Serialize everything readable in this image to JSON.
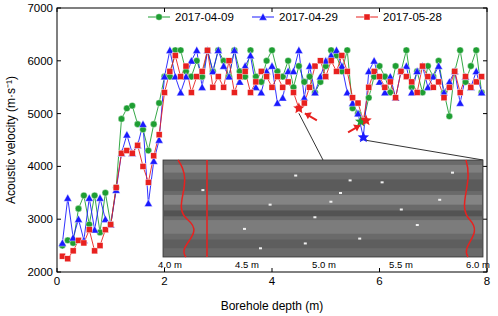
{
  "chart_data": {
    "type": "line",
    "xlabel": "Borehole depth (m)",
    "ylabel": "Acoustic velocity (m·s⁻¹)",
    "xlim": [
      0,
      8
    ],
    "xticks": [
      0,
      2,
      4,
      6,
      8
    ],
    "ylim": [
      2000,
      7000
    ],
    "yticks": [
      2000,
      3000,
      4000,
      5000,
      6000,
      7000
    ],
    "legend": "top",
    "x": [
      0.1,
      0.2,
      0.3,
      0.4,
      0.5,
      0.6,
      0.7,
      0.8,
      0.9,
      1.0,
      1.1,
      1.2,
      1.3,
      1.4,
      1.5,
      1.6,
      1.7,
      1.8,
      1.9,
      2.0,
      2.1,
      2.2,
      2.3,
      2.4,
      2.5,
      2.6,
      2.7,
      2.8,
      2.9,
      3.0,
      3.1,
      3.2,
      3.3,
      3.4,
      3.5,
      3.6,
      3.7,
      3.8,
      3.9,
      4.0,
      4.1,
      4.2,
      4.3,
      4.4,
      4.5,
      4.6,
      4.7,
      4.8,
      4.9,
      5.0,
      5.1,
      5.2,
      5.3,
      5.4,
      5.5,
      5.6,
      5.7,
      5.8,
      5.9,
      6.0,
      6.1,
      6.2,
      6.3,
      6.4,
      6.5,
      6.6,
      6.7,
      6.8,
      6.9,
      7.0,
      7.1,
      7.2,
      7.3,
      7.4,
      7.5,
      7.6,
      7.7,
      7.8,
      7.9
    ],
    "series": [
      {
        "name": "2017-04-09",
        "color": "#1e9e32",
        "marker": "circle",
        "values": [
          2500,
          2600,
          2550,
          3200,
          3450,
          2900,
          3450,
          2750,
          3500,
          2900,
          3600,
          4900,
          5100,
          5150,
          4800,
          4700,
          4300,
          4800,
          5200,
          5700,
          5700,
          6200,
          6200,
          5800,
          5700,
          6000,
          5700,
          6200,
          5800,
          6200,
          6000,
          5700,
          6200,
          5800,
          5700,
          6200,
          5700,
          5600,
          6000,
          6200,
          5800,
          5700,
          6000,
          5500,
          5900,
          5600,
          5700,
          5400,
          5600,
          5900,
          6200,
          6100,
          5800,
          6200,
          5100,
          5000,
          4850,
          5300,
          5700,
          5900,
          5700,
          5400,
          5900,
          5800,
          6200,
          5500,
          5800,
          5400,
          5900,
          5700,
          6000,
          5400,
          4950,
          5800,
          6200,
          5600,
          5900,
          6200,
          5400
        ]
      },
      {
        "name": "2017-04-29",
        "color": "#1a1aff",
        "marker": "triangle",
        "values": [
          2550,
          3400,
          2650,
          3000,
          2600,
          3400,
          2800,
          3400,
          3000,
          2900,
          3550,
          4250,
          4600,
          4250,
          4400,
          4800,
          3300,
          4100,
          4500,
          5700,
          6200,
          5700,
          5400,
          5700,
          6000,
          6200,
          5500,
          6200,
          5800,
          6200,
          5900,
          5700,
          6200,
          5600,
          5900,
          6100,
          5500,
          5400,
          5800,
          5900,
          5200,
          5300,
          5800,
          5800,
          6200,
          5300,
          5900,
          5400,
          5700,
          6000,
          6100,
          6200,
          5900,
          5400,
          5200,
          5000,
          4550,
          5800,
          6000,
          5600,
          5400,
          5700,
          5300,
          5800,
          5900,
          5400,
          5800,
          5900,
          5500,
          5700,
          5900,
          5400,
          5600,
          5800,
          5200,
          5700,
          5500,
          5800,
          5400
        ]
      },
      {
        "name": "2017-05-28",
        "color": "#e8211f",
        "marker": "square",
        "values": [
          2300,
          2250,
          2400,
          2600,
          2550,
          2800,
          2400,
          2500,
          2800,
          2900,
          3600,
          4250,
          4300,
          4250,
          4400,
          4000,
          3700,
          4200,
          4600,
          5400,
          5800,
          6100,
          5700,
          5900,
          5400,
          5700,
          5800,
          6200,
          5500,
          5700,
          5500,
          6000,
          5400,
          5700,
          5800,
          5400,
          5600,
          5800,
          5700,
          5500,
          5700,
          5500,
          5600,
          5400,
          5100,
          5200,
          5500,
          5900,
          6000,
          5700,
          6000,
          5800,
          6100,
          5800,
          5300,
          5200,
          4870,
          5500,
          5800,
          5700,
          5500,
          5600,
          5300,
          5800,
          5700,
          5600,
          5400,
          5900,
          5700,
          5500,
          5600,
          5300,
          5500,
          5800,
          5400,
          5700,
          5500,
          5600,
          5700
        ]
      }
    ],
    "highlights": [
      {
        "x": 4.5,
        "value": 5100,
        "color": "#e8211f"
      },
      {
        "x": 5.7,
        "value": 4550,
        "color": "#1a1aff"
      },
      {
        "x": 5.65,
        "value": 4850,
        "color": "#1e9e32"
      },
      {
        "x": 5.75,
        "value": 4870,
        "color": "#e8211f"
      }
    ],
    "inset": {
      "xlim": [
        4,
        6
      ],
      "xticks": [
        {
          "value": 4,
          "label": "4.0 m"
        },
        {
          "value": 4.5,
          "label": "4.5 m"
        },
        {
          "value": 5,
          "label": "5.0 m"
        },
        {
          "value": 5.5,
          "label": "5.5 m"
        },
        {
          "value": 6,
          "label": "6.0 m"
        }
      ]
    }
  }
}
